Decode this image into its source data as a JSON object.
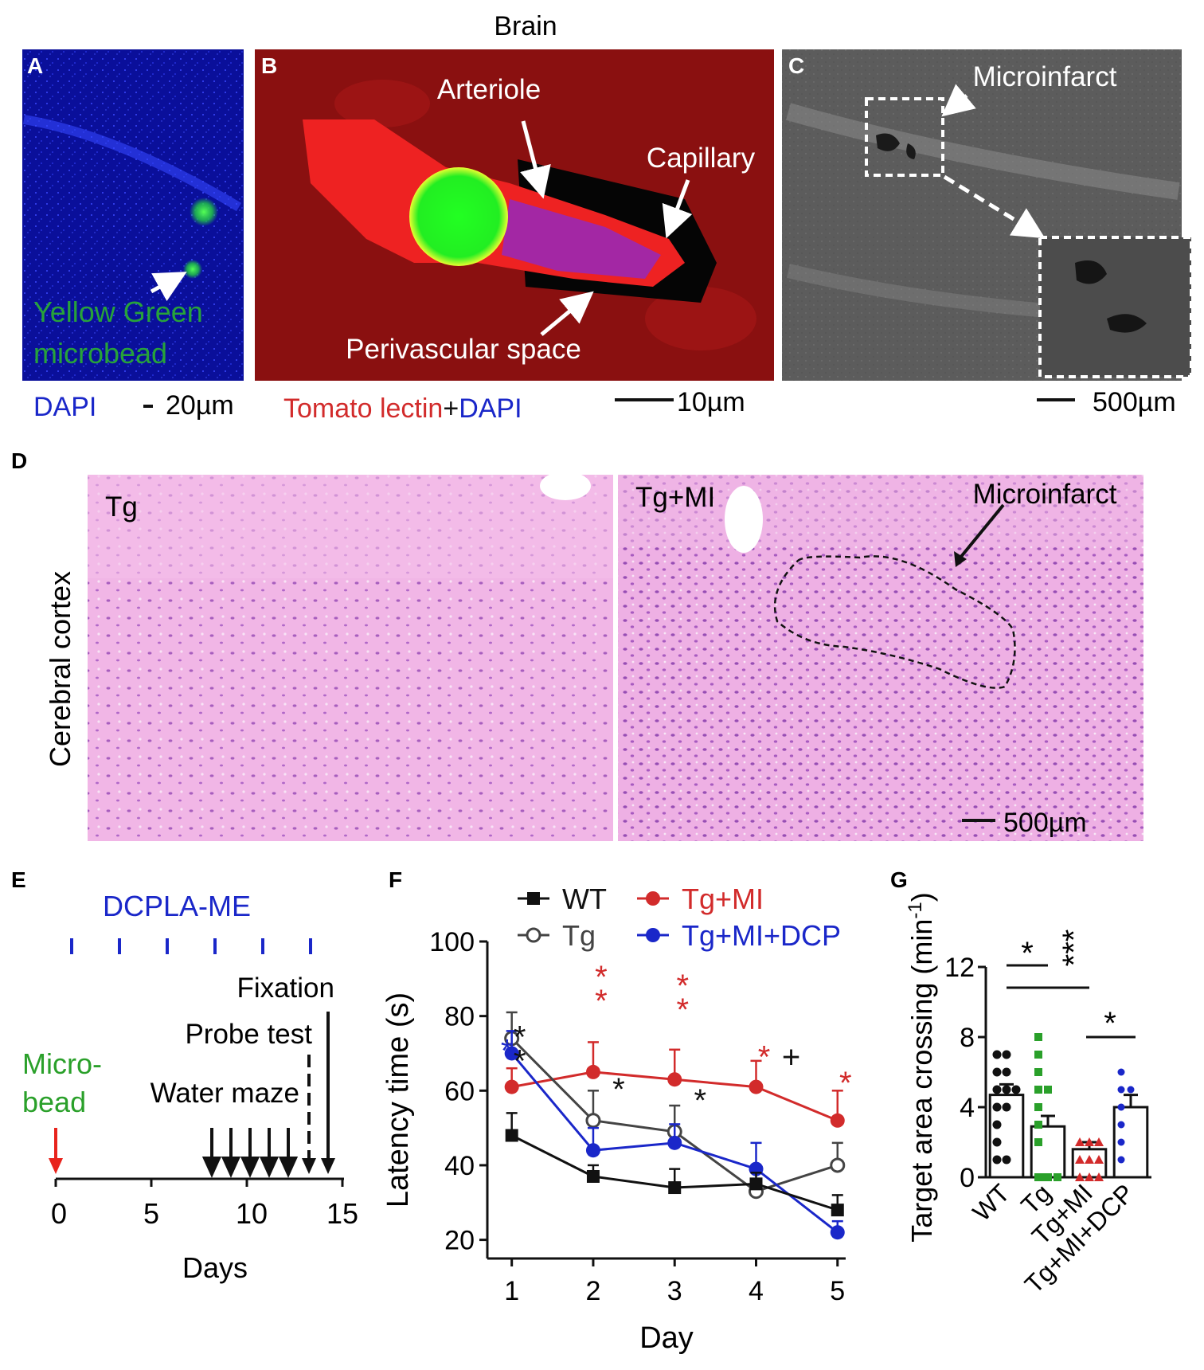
{
  "figure": {
    "panel_letters": {
      "A": "A",
      "B": "B",
      "C": "C",
      "D": "D",
      "E": "E",
      "F": "F",
      "G": "G"
    },
    "top_title": "Brain",
    "panel_a": {
      "bead_label_line1": "Yellow Green",
      "bead_label_line2": "microbead",
      "stain": "DAPI",
      "scale": "20µm"
    },
    "panel_b": {
      "arteriole": "Arteriole",
      "capillary": "Capillary",
      "perivascular": "Perivascular space",
      "stain_part1": "Tomato lectin",
      "stain_plus": "+",
      "stain_part2": "DAPI",
      "scale": "10µm"
    },
    "panel_c": {
      "microinfarct": "Microinfarct",
      "scale": "500µm"
    },
    "panel_d": {
      "left_label": "Tg",
      "right_label": "Tg+MI",
      "microinfarct": "Microinfarct",
      "side_label": "Cerebral cortex",
      "scale": "500µm"
    },
    "panel_e": {
      "drug": "DCPLA-ME",
      "fixation": "Fixation",
      "probe": "Probe test",
      "micro_line1": "Micro-",
      "micro_line2": "bead",
      "water": "Water maze",
      "xlabel": "Days",
      "ticks": [
        "0",
        "5",
        "10",
        "15"
      ]
    },
    "panel_g": {
      "stars_wt_tg": "*",
      "stars_wt_tgmi": "***",
      "stars_tgmi_dcp": "*"
    }
  },
  "colors": {
    "red": "#d22b2b",
    "blue": "#1a27c9",
    "green": "#2aa02a",
    "black": "#111111"
  },
  "chart_data": [
    {
      "type": "line",
      "panel": "F",
      "xlabel": "Day",
      "ylabel": "Latency time (s)",
      "x": [
        1,
        2,
        3,
        4,
        5
      ],
      "ylim": [
        15,
        100
      ],
      "yticks": [
        20,
        40,
        60,
        80,
        100
      ],
      "series": [
        {
          "name": "WT",
          "color": "#111111",
          "marker": "square",
          "values": [
            48,
            37,
            34,
            35,
            28
          ],
          "err": [
            6,
            3,
            5,
            3,
            4
          ]
        },
        {
          "name": "Tg",
          "color": "#444444",
          "marker": "open-circle",
          "values": [
            74,
            52,
            49,
            33,
            40
          ],
          "err": [
            7,
            8,
            7,
            3,
            6
          ]
        },
        {
          "name": "Tg+MI",
          "color": "#d22b2b",
          "marker": "circle",
          "values": [
            61,
            65,
            63,
            61,
            52
          ],
          "err": [
            5,
            8,
            8,
            7,
            8
          ]
        },
        {
          "name": "Tg+MI+DCP",
          "color": "#1a27c9",
          "marker": "circle",
          "values": [
            70,
            44,
            46,
            39,
            22
          ],
          "err": [
            6,
            6,
            5,
            7,
            3
          ]
        }
      ],
      "annotations": [
        {
          "x": 1,
          "text": "**",
          "color": "#111111"
        },
        {
          "x": 2,
          "text": "**",
          "color": "#d22b2b"
        },
        {
          "x": 2,
          "text": "*",
          "color": "#111111"
        },
        {
          "x": 3,
          "text": "**",
          "color": "#d22b2b"
        },
        {
          "x": 3,
          "text": "*",
          "color": "#111111"
        },
        {
          "x": 4,
          "text": "*",
          "color": "#d22b2b"
        },
        {
          "x": 4,
          "text": "+",
          "color": "#111111"
        },
        {
          "x": 5,
          "text": "*",
          "color": "#d22b2b"
        },
        {
          "x": 1,
          "text": "*",
          "color": "#1a27c9"
        }
      ]
    },
    {
      "type": "bar",
      "panel": "G",
      "ylabel": "Target area crossing (min⁻¹)",
      "ylabel_main": "Target area crossing (min",
      "ylabel_sup": "-1",
      "ylabel_close": ")",
      "categories": [
        "WT",
        "Tg",
        "Tg+MI",
        "Tg+MI+DCP"
      ],
      "values": [
        4.7,
        2.9,
        1.6,
        4.0
      ],
      "err": [
        0.6,
        0.6,
        0.4,
        0.7
      ],
      "ylim": [
        0,
        12
      ],
      "yticks": [
        0,
        4,
        8,
        12
      ],
      "point_colors": [
        "#111111",
        "#2aa02a",
        "#d22b2b",
        "#1a27c9"
      ],
      "points": [
        [
          7,
          7,
          6,
          6,
          5,
          5,
          5,
          4,
          4,
          3,
          2,
          1,
          1
        ],
        [
          8,
          7,
          6,
          5,
          5,
          4,
          3,
          2,
          0,
          0,
          0,
          0
        ],
        [
          2,
          2,
          2,
          1,
          1,
          1,
          0,
          0,
          0
        ],
        [
          6,
          5,
          5,
          4,
          3,
          2,
          1
        ]
      ]
    }
  ]
}
